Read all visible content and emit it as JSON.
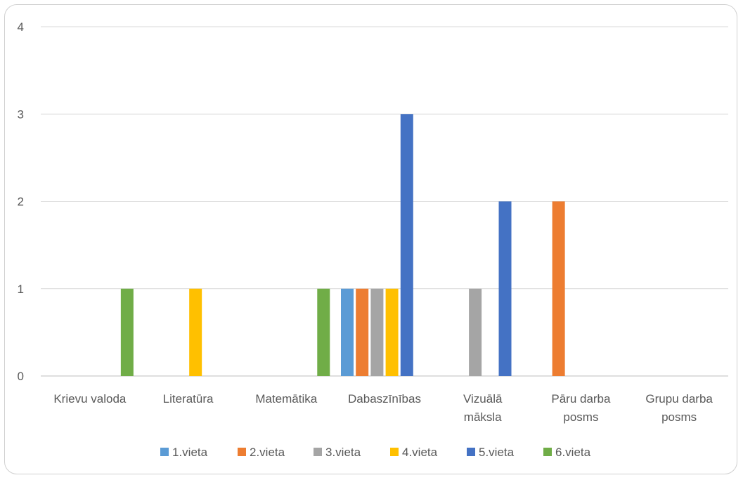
{
  "chart_data": {
    "type": "bar",
    "categories": [
      [
        "Krievu valoda"
      ],
      [
        "Literatūra"
      ],
      [
        "Matemātika"
      ],
      [
        "Dabaszīnības"
      ],
      [
        "Vizuālā",
        "māksla"
      ],
      [
        "Pāru darba",
        "posms"
      ],
      [
        "Grupu darba",
        "posms"
      ]
    ],
    "series": [
      {
        "name": "1.vieta",
        "color": "#5B9BD5",
        "values": [
          0,
          0,
          0,
          1,
          0,
          0,
          0
        ]
      },
      {
        "name": "2.vieta",
        "color": "#ED7D31",
        "values": [
          0,
          0,
          0,
          1,
          0,
          2,
          0
        ]
      },
      {
        "name": "3.vieta",
        "color": "#A5A5A5",
        "values": [
          0,
          0,
          0,
          1,
          1,
          0,
          0
        ]
      },
      {
        "name": "4.vieta",
        "color": "#FFC000",
        "values": [
          0,
          1,
          0,
          1,
          0,
          0,
          0
        ]
      },
      {
        "name": "5.vieta",
        "color": "#4472C4",
        "values": [
          0,
          0,
          0,
          3,
          2,
          0,
          0
        ]
      },
      {
        "name": "6.vieta",
        "color": "#70AD47",
        "values": [
          1,
          0,
          1,
          0,
          0,
          0,
          0
        ]
      }
    ],
    "ylim": [
      0,
      4
    ],
    "yticks": [
      0,
      1,
      2,
      3,
      4
    ],
    "grid": true,
    "legend_position": "bottom"
  }
}
